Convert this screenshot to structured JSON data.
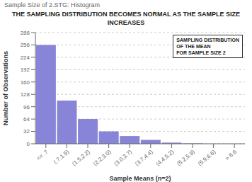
{
  "chart_data": {
    "type": "bar",
    "title": "THE SAMPLING DISTRIBUTION BECOMES NORMAL AS THE SAMPLE SIZE INCREASES",
    "subtitle": "Sample Size of 2.STG: Histogram",
    "xlabel": "Sample Means (n=2)",
    "ylabel": "Number of Observations",
    "categories": [
      "<= .7",
      "(.7,1.5)",
      "(1.5,2.2)",
      "(2.2,3.0)",
      "(3.0,3.7)",
      "(3.7,4.4)",
      "(4.4,5.2)",
      "(5.2,5.9)",
      "(5.9,6.6)",
      "> 6.6"
    ],
    "values": [
      256,
      112,
      64,
      32,
      20,
      10,
      3,
      1,
      0,
      0
    ],
    "color": "#8884d8",
    "ylim": [
      0,
      288
    ],
    "yticks": [
      0,
      32,
      64,
      96,
      128,
      160,
      192,
      224,
      256,
      288
    ],
    "grid": true,
    "annotations": [
      "SAMPLING DISTRIBUTION\nOF THE MEAN\nFOR SAMPLE SIZE 2"
    ]
  }
}
